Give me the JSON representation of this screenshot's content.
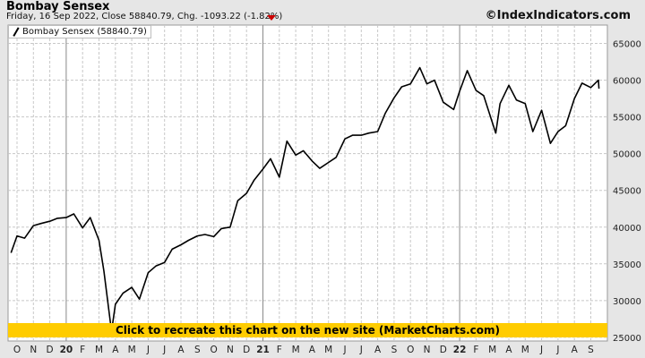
{
  "header": {
    "title": "Bombay Sensex",
    "subtitle": "Friday, 16 Sep 2022, Close 58840.79, Chg. -1093.22 (-1.82%)",
    "copyright": "©IndexIndicators.com",
    "change_direction": "down",
    "change_color": "#cc0000"
  },
  "legend": {
    "label": "Bombay Sensex (58840.79)"
  },
  "banner": {
    "text": "Click to recreate this chart on the new site (MarketCharts.com)",
    "color": "#ffcc00"
  },
  "chart_data": {
    "type": "line",
    "title": "Bombay Sensex",
    "ylim": [
      24500,
      67500
    ],
    "y_scale": "linear",
    "y_axis_position": "right",
    "yticks": [
      25000,
      30000,
      35000,
      40000,
      45000,
      50000,
      55000,
      60000,
      65000
    ],
    "ytick_labels": [
      "25000",
      "30000",
      "35000",
      "40000",
      "45000",
      "50000",
      "55000",
      "60000",
      "65000"
    ],
    "xticks": [
      "O",
      "N",
      "D",
      "20",
      "F",
      "M",
      "A",
      "M",
      "J",
      "J",
      "A",
      "S",
      "O",
      "N",
      "D",
      "21",
      "F",
      "M",
      "A",
      "M",
      "J",
      "J",
      "A",
      "S",
      "O",
      "N",
      "D",
      "22",
      "F",
      "M",
      "A",
      "M",
      "J",
      "J",
      "A",
      "S"
    ],
    "year_ticks": [
      "20",
      "21",
      "22"
    ],
    "grid": true,
    "legend_position": "top-left",
    "line_color": "#000000",
    "series": [
      {
        "name": "Bombay Sensex",
        "x": [
          "2019-09-20",
          "2019-10-01",
          "2019-10-15",
          "2019-11-01",
          "2019-11-15",
          "2019-12-01",
          "2019-12-15",
          "2020-01-01",
          "2020-01-15",
          "2020-02-01",
          "2020-02-15",
          "2020-03-01",
          "2020-03-10",
          "2020-03-24",
          "2020-04-01",
          "2020-04-15",
          "2020-05-01",
          "2020-05-15",
          "2020-06-01",
          "2020-06-15",
          "2020-07-01",
          "2020-07-15",
          "2020-08-01",
          "2020-08-15",
          "2020-09-01",
          "2020-09-15",
          "2020-10-01",
          "2020-10-15",
          "2020-11-01",
          "2020-11-15",
          "2020-12-01",
          "2020-12-15",
          "2021-01-01",
          "2021-01-15",
          "2021-02-01",
          "2021-02-15",
          "2021-03-01",
          "2021-03-15",
          "2021-04-01",
          "2021-04-15",
          "2021-05-01",
          "2021-05-15",
          "2021-06-01",
          "2021-06-15",
          "2021-07-01",
          "2021-07-15",
          "2021-08-01",
          "2021-08-15",
          "2021-09-01",
          "2021-09-15",
          "2021-10-01",
          "2021-10-18",
          "2021-11-01",
          "2021-11-15",
          "2021-12-01",
          "2021-12-20",
          "2022-01-01",
          "2022-01-15",
          "2022-02-01",
          "2022-02-15",
          "2022-03-07",
          "2022-03-15",
          "2022-04-01",
          "2022-04-15",
          "2022-05-01",
          "2022-05-15",
          "2022-06-01",
          "2022-06-17",
          "2022-07-01",
          "2022-07-15",
          "2022-08-01",
          "2022-08-15",
          "2022-09-01",
          "2022-09-15",
          "2022-09-16"
        ],
        "y": [
          36500,
          38800,
          38500,
          40200,
          40500,
          40800,
          41200,
          41300,
          41800,
          39900,
          41300,
          38200,
          34000,
          25800,
          29500,
          31000,
          31800,
          30200,
          33800,
          34700,
          35200,
          37000,
          37600,
          38200,
          38800,
          39000,
          38700,
          39800,
          40000,
          43600,
          44600,
          46400,
          47900,
          49300,
          46800,
          51700,
          49800,
          50400,
          49000,
          48000,
          48800,
          49500,
          52000,
          52500,
          52500,
          52800,
          53000,
          55500,
          57600,
          59100,
          59500,
          61700,
          59500,
          60000,
          57000,
          56000,
          58500,
          61300,
          58600,
          57900,
          52800,
          56800,
          59300,
          57300,
          56800,
          53000,
          55900,
          51400,
          53000,
          53800,
          57500,
          59600,
          59000,
          60000,
          58840
        ]
      }
    ]
  }
}
